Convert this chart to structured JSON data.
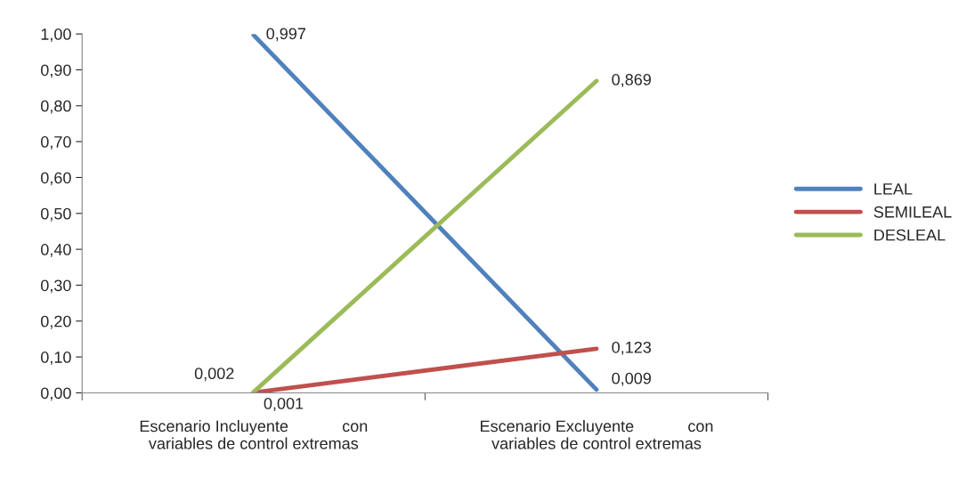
{
  "chart_data": {
    "type": "line",
    "categories": [
      "Escenario Incluyente            con\nvariables de control extremas",
      "Escenario Excluyente            con\nvariables de control extremas"
    ],
    "series": [
      {
        "name": "LEAL",
        "color": "#4f81bd",
        "values": [
          0.997,
          0.009
        ],
        "value_labels": [
          "0,997",
          "0,009"
        ]
      },
      {
        "name": "SEMILEAL",
        "color": "#c0504d",
        "values": [
          0.001,
          0.123
        ],
        "value_labels": [
          "0,001",
          "0,123"
        ]
      },
      {
        "name": "DESLEAL",
        "color": "#9bbb59",
        "values": [
          0.002,
          0.869
        ],
        "value_labels": [
          "0,002",
          "0,869"
        ]
      }
    ],
    "ylim": [
      0,
      1
    ],
    "yticks": [
      {
        "value": 0,
        "label": "0,00"
      },
      {
        "value": 0.1,
        "label": "0,10"
      },
      {
        "value": 0.2,
        "label": "0,20"
      },
      {
        "value": 0.3,
        "label": "0,30"
      },
      {
        "value": 0.4,
        "label": "0,40"
      },
      {
        "value": 0.5,
        "label": "0,50"
      },
      {
        "value": 0.6,
        "label": "0,60"
      },
      {
        "value": 0.7,
        "label": "0,70"
      },
      {
        "value": 0.8,
        "label": "0,80"
      },
      {
        "value": 0.9,
        "label": "0,90"
      },
      {
        "value": 1,
        "label": "1,00"
      }
    ],
    "grid": false,
    "legend": "right",
    "marker": "none",
    "line_style": "solid"
  }
}
